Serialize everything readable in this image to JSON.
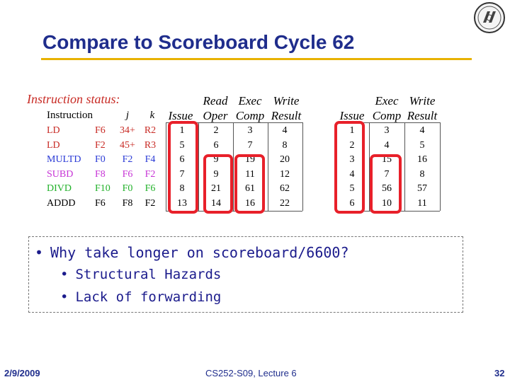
{
  "title": "Compare to Scoreboard Cycle 62",
  "instruction_status_label": "Instruction status:",
  "headers": {
    "read_oper_top": "Read",
    "read_oper_bottom": "Oper",
    "exec_comp_top": "Exec",
    "exec_comp_bottom": "Comp",
    "write_result_top": "Write",
    "write_result_bottom": "Result",
    "instruction": "Instruction",
    "j": "j",
    "k": "k",
    "issue": "Issue",
    "exec2_top": "Exec",
    "exec2_bottom": "Comp",
    "write2_top": "Write",
    "write2_bottom": "Result",
    "issue2": "Issue"
  },
  "rows": [
    {
      "op": "LD",
      "dest": "F6",
      "j": "34+",
      "k": "R2",
      "issue": "1",
      "read": "2",
      "exec": "3",
      "write": "4",
      "issue2": "1",
      "exec2": "3",
      "write2": "4",
      "color": "#c82b25"
    },
    {
      "op": "LD",
      "dest": "F2",
      "j": "45+",
      "k": "R3",
      "issue": "5",
      "read": "6",
      "exec": "7",
      "write": "8",
      "issue2": "2",
      "exec2": "4",
      "write2": "5",
      "color": "#c82b25"
    },
    {
      "op": "MULTD",
      "dest": "F0",
      "j": "F2",
      "k": "F4",
      "issue": "6",
      "read": "9",
      "exec": "19",
      "write": "20",
      "issue2": "3",
      "exec2": "15",
      "write2": "16",
      "color": "#2b3bd6"
    },
    {
      "op": "SUBD",
      "dest": "F8",
      "j": "F6",
      "k": "F2",
      "issue": "7",
      "read": "9",
      "exec": "11",
      "write": "12",
      "issue2": "4",
      "exec2": "7",
      "write2": "8",
      "color": "#c734d6"
    },
    {
      "op": "DIVD",
      "dest": "F10",
      "j": "F0",
      "k": "F6",
      "issue": "8",
      "read": "21",
      "exec": "61",
      "write": "62",
      "issue2": "5",
      "exec2": "56",
      "write2": "57",
      "color": "#22b12a"
    },
    {
      "op": "ADDD",
      "dest": "F6",
      "j": "F8",
      "k": "F2",
      "issue": "13",
      "read": "14",
      "exec": "16",
      "write": "22",
      "issue2": "6",
      "exec2": "10",
      "write2": "11",
      "color": "#000000"
    }
  ],
  "bullets": {
    "main": "Why take longer on scoreboard/6600?",
    "sub1": "Structural Hazards",
    "sub2": "Lack of forwarding"
  },
  "footer": {
    "date": "2/9/2009",
    "course": "CS252-S09, Lecture 6",
    "page": "32"
  },
  "colors": {
    "title": "#1f2d8c",
    "rule": "#e8b200",
    "highlight_box": "#e8202a",
    "bullet_text": "#1b1b8c"
  },
  "icons": {
    "seal": "university-seal-icon"
  }
}
